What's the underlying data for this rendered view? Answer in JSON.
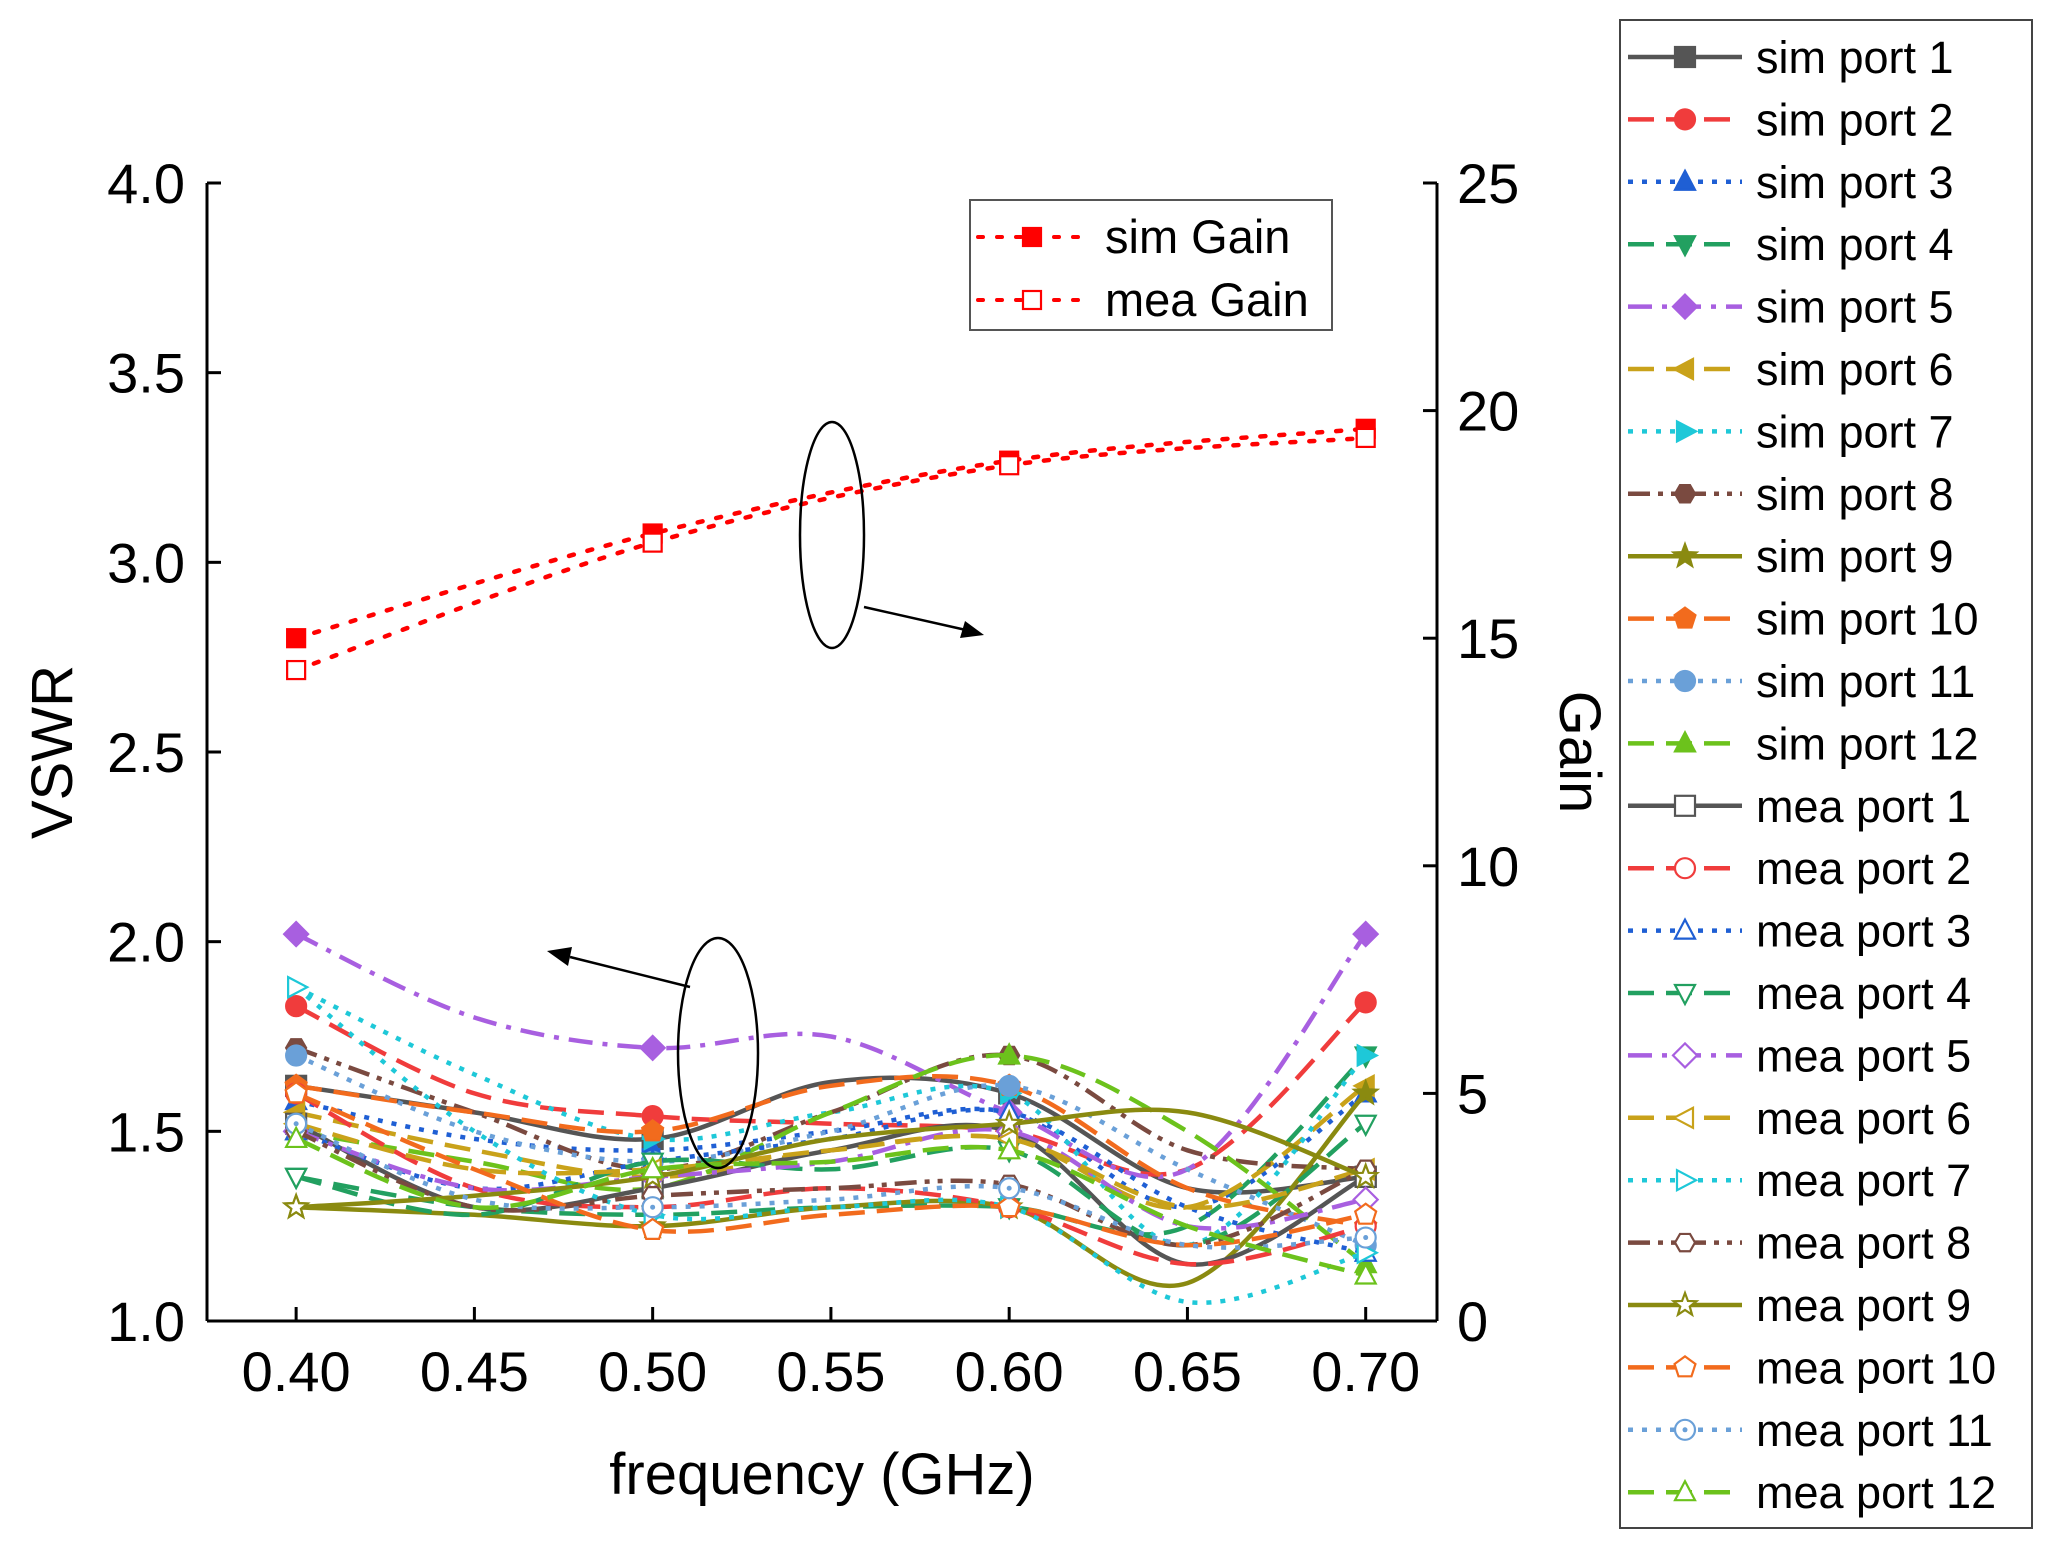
{
  "chart_data": {
    "type": "line",
    "title": "",
    "xlabel": "frequency (GHz)",
    "ylabel": "VSWR",
    "y2label": "Gain",
    "xlim": [
      0.375,
      0.72
    ],
    "ylim": [
      1.0,
      4.0
    ],
    "y2lim": [
      0,
      25
    ],
    "xticks": [
      "0.40",
      "0.45",
      "0.50",
      "0.55",
      "0.60",
      "0.65",
      "0.70"
    ],
    "yticks": [
      "1.0",
      "1.5",
      "2.0",
      "2.5",
      "3.0",
      "3.5",
      "4.0"
    ],
    "y2ticks": [
      "0",
      "5",
      "10",
      "15",
      "20",
      "25"
    ],
    "gain_legend_placement": "top-center",
    "port_legend_placement": "outside-right",
    "gain_series": [
      {
        "name": "sim  Gain",
        "color": "#ff0000",
        "marker": "square-filled",
        "x": [
          0.4,
          0.5,
          0.6,
          0.7
        ],
        "values": [
          15.0,
          17.3,
          18.9,
          19.6
        ]
      },
      {
        "name": "mea Gain",
        "color": "#ff0000",
        "marker": "square-open",
        "x": [
          0.4,
          0.5,
          0.6,
          0.7
        ],
        "values": [
          14.3,
          17.1,
          18.8,
          19.4
        ]
      }
    ],
    "vswr_series": [
      {
        "name": "sim port 1",
        "color": "#555555",
        "dash": "solid",
        "marker": "square-filled",
        "x": [
          0.4,
          0.45,
          0.5,
          0.55,
          0.6,
          0.65,
          0.7
        ],
        "values": [
          1.62,
          1.55,
          1.48,
          1.63,
          1.6,
          1.35,
          1.38
        ]
      },
      {
        "name": "sim port 2",
        "color": "#f03c3c",
        "dash": "dash",
        "marker": "circle-filled",
        "x": [
          0.4,
          0.45,
          0.5,
          0.55,
          0.6,
          0.65,
          0.7
        ],
        "values": [
          1.83,
          1.6,
          1.54,
          1.52,
          1.5,
          1.4,
          1.84
        ]
      },
      {
        "name": "sim port 3",
        "color": "#1f5fd4",
        "dash": "dot",
        "marker": "triangle-up-filled",
        "x": [
          0.4,
          0.45,
          0.5,
          0.55,
          0.6,
          0.65,
          0.7
        ],
        "values": [
          1.58,
          1.48,
          1.45,
          1.5,
          1.55,
          1.3,
          1.6
        ]
      },
      {
        "name": "sim port 4",
        "color": "#22a060",
        "dash": "dash",
        "marker": "triangle-down-filled",
        "x": [
          0.4,
          0.45,
          0.5,
          0.55,
          0.6,
          0.65,
          0.7
        ],
        "values": [
          1.38,
          1.3,
          1.28,
          1.3,
          1.3,
          1.25,
          1.7
        ]
      },
      {
        "name": "sim port 5",
        "color": "#a85fe0",
        "dash": "dashdot",
        "marker": "diamond-filled",
        "x": [
          0.4,
          0.45,
          0.5,
          0.55,
          0.6,
          0.65,
          0.7
        ],
        "values": [
          2.02,
          1.8,
          1.72,
          1.75,
          1.55,
          1.4,
          2.02
        ]
      },
      {
        "name": "sim port 6",
        "color": "#c9a21a",
        "dash": "dash",
        "marker": "triangle-left-filled",
        "x": [
          0.4,
          0.45,
          0.5,
          0.55,
          0.6,
          0.65,
          0.7
        ],
        "values": [
          1.55,
          1.45,
          1.38,
          1.45,
          1.48,
          1.3,
          1.62
        ]
      },
      {
        "name": "sim port 7",
        "color": "#1ec8d8",
        "dash": "dot",
        "marker": "triangle-right-filled",
        "x": [
          0.4,
          0.45,
          0.5,
          0.55,
          0.6,
          0.65,
          0.7
        ],
        "values": [
          1.88,
          1.65,
          1.48,
          1.55,
          1.6,
          1.2,
          1.7
        ]
      },
      {
        "name": "sim port 8",
        "color": "#7a4a40",
        "dash": "dashdotdot",
        "marker": "hexagon-filled",
        "x": [
          0.4,
          0.45,
          0.5,
          0.55,
          0.6,
          0.65,
          0.7
        ],
        "values": [
          1.72,
          1.55,
          1.4,
          1.55,
          1.7,
          1.45,
          1.4
        ]
      },
      {
        "name": "sim port 9",
        "color": "#8a8a10",
        "dash": "solid",
        "marker": "star-filled",
        "x": [
          0.4,
          0.45,
          0.5,
          0.55,
          0.6,
          0.65,
          0.7
        ],
        "values": [
          1.3,
          1.28,
          1.25,
          1.3,
          1.3,
          1.1,
          1.6
        ]
      },
      {
        "name": "sim port 10",
        "color": "#f26b1d",
        "dash": "dash",
        "marker": "pentagon-filled",
        "x": [
          0.4,
          0.45,
          0.5,
          0.55,
          0.6,
          0.65,
          0.7
        ],
        "values": [
          1.62,
          1.55,
          1.5,
          1.62,
          1.62,
          1.35,
          1.25
        ]
      },
      {
        "name": "sim port 11",
        "color": "#6aa0d8",
        "dash": "dot",
        "marker": "sphere-filled",
        "x": [
          0.4,
          0.45,
          0.5,
          0.55,
          0.6,
          0.65,
          0.7
        ],
        "values": [
          1.7,
          1.5,
          1.42,
          1.5,
          1.62,
          1.4,
          1.2
        ]
      },
      {
        "name": "sim port 12",
        "color": "#6cc21c",
        "dash": "dash",
        "marker": "triangle-up-filled",
        "x": [
          0.4,
          0.45,
          0.5,
          0.55,
          0.6,
          0.65,
          0.7
        ],
        "values": [
          1.5,
          1.42,
          1.35,
          1.55,
          1.7,
          1.5,
          1.15
        ]
      },
      {
        "name": "mea port 1",
        "color": "#555555",
        "dash": "solid",
        "marker": "square-open",
        "x": [
          0.4,
          0.45,
          0.5,
          0.55,
          0.6,
          0.65,
          0.7
        ],
        "values": [
          1.52,
          1.3,
          1.35,
          1.45,
          1.5,
          1.15,
          1.38
        ]
      },
      {
        "name": "mea port 2",
        "color": "#f03c3c",
        "dash": "dash",
        "marker": "circle-open",
        "x": [
          0.4,
          0.45,
          0.5,
          0.55,
          0.6,
          0.65,
          0.7
        ],
        "values": [
          1.6,
          1.35,
          1.3,
          1.35,
          1.3,
          1.15,
          1.25
        ]
      },
      {
        "name": "mea port 3",
        "color": "#1f5fd4",
        "dash": "dot",
        "marker": "triangle-up-open",
        "x": [
          0.4,
          0.45,
          0.5,
          0.55,
          0.6,
          0.65,
          0.7
        ],
        "values": [
          1.5,
          1.35,
          1.42,
          1.48,
          1.55,
          1.3,
          1.18
        ]
      },
      {
        "name": "mea port 4",
        "color": "#22a060",
        "dash": "dash",
        "marker": "triangle-down-open",
        "x": [
          0.4,
          0.45,
          0.5,
          0.55,
          0.6,
          0.65,
          0.7
        ],
        "values": [
          1.38,
          1.28,
          1.42,
          1.4,
          1.45,
          1.2,
          1.52
        ]
      },
      {
        "name": "mea port 5",
        "color": "#a85fe0",
        "dash": "dashdot",
        "marker": "diamond-open",
        "x": [
          0.4,
          0.45,
          0.5,
          0.55,
          0.6,
          0.65,
          0.7
        ],
        "values": [
          1.5,
          1.35,
          1.38,
          1.42,
          1.5,
          1.25,
          1.32
        ]
      },
      {
        "name": "mea port 6",
        "color": "#c9a21a",
        "dash": "dash",
        "marker": "triangle-left-open",
        "x": [
          0.4,
          0.45,
          0.5,
          0.55,
          0.6,
          0.65,
          0.7
        ],
        "values": [
          1.52,
          1.4,
          1.4,
          1.45,
          1.48,
          1.3,
          1.4
        ]
      },
      {
        "name": "mea port 7",
        "color": "#1ec8d8",
        "dash": "dot",
        "marker": "triangle-right-open",
        "x": [
          0.4,
          0.45,
          0.5,
          0.55,
          0.6,
          0.65,
          0.7
        ],
        "values": [
          1.88,
          1.5,
          1.28,
          1.3,
          1.3,
          1.05,
          1.18
        ]
      },
      {
        "name": "mea port 8",
        "color": "#7a4a40",
        "dash": "dashdotdot",
        "marker": "hexagon-open",
        "x": [
          0.4,
          0.45,
          0.5,
          0.55,
          0.6,
          0.65,
          0.7
        ],
        "values": [
          1.5,
          1.3,
          1.33,
          1.35,
          1.36,
          1.2,
          1.4
        ]
      },
      {
        "name": "mea port 9",
        "color": "#8a8a10",
        "dash": "solid",
        "marker": "star-open",
        "x": [
          0.4,
          0.45,
          0.5,
          0.55,
          0.6,
          0.65,
          0.7
        ],
        "values": [
          1.3,
          1.33,
          1.38,
          1.48,
          1.52,
          1.55,
          1.38
        ]
      },
      {
        "name": "mea port 10",
        "color": "#f26b1d",
        "dash": "dash",
        "marker": "pentagon-open",
        "x": [
          0.4,
          0.45,
          0.5,
          0.55,
          0.6,
          0.65,
          0.7
        ],
        "values": [
          1.6,
          1.4,
          1.24,
          1.28,
          1.3,
          1.2,
          1.28
        ]
      },
      {
        "name": "mea port 11",
        "color": "#6aa0d8",
        "dash": "dot",
        "marker": "circle-dot-open",
        "x": [
          0.4,
          0.45,
          0.5,
          0.55,
          0.6,
          0.65,
          0.7
        ],
        "values": [
          1.52,
          1.32,
          1.3,
          1.32,
          1.35,
          1.2,
          1.22
        ]
      },
      {
        "name": "mea port 12",
        "color": "#6cc21c",
        "dash": "dash",
        "marker": "triangle-up-open",
        "x": [
          0.4,
          0.45,
          0.5,
          0.55,
          0.6,
          0.65,
          0.7
        ],
        "values": [
          1.48,
          1.3,
          1.4,
          1.42,
          1.45,
          1.25,
          1.12
        ]
      }
    ]
  }
}
